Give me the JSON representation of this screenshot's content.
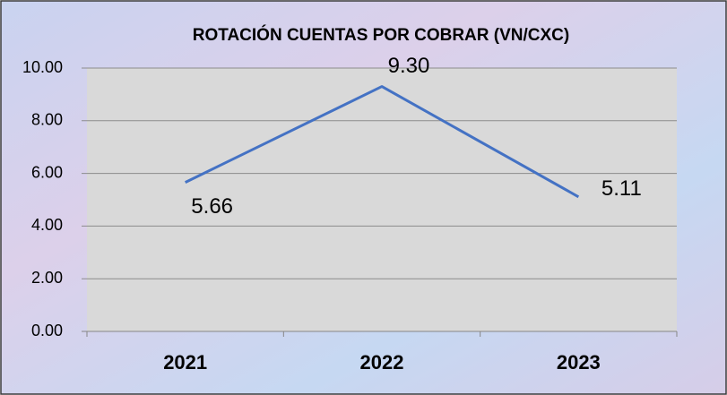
{
  "chart_data": {
    "type": "line",
    "title": "ROTACIÓN CUENTAS POR COBRAR (VN/CXC)",
    "categories": [
      "2021",
      "2022",
      "2023"
    ],
    "values": [
      5.66,
      9.3,
      5.11
    ],
    "value_labels": [
      "5.66",
      "9.30",
      "5.11"
    ],
    "color": "#4472c4",
    "ylim": [
      0,
      10
    ],
    "yticks": [
      {
        "value": 0,
        "label": "0.00"
      },
      {
        "value": 2,
        "label": "2.00"
      },
      {
        "value": 4,
        "label": "4.00"
      },
      {
        "value": 6,
        "label": "6.00"
      },
      {
        "value": 8,
        "label": "8.00"
      },
      {
        "value": 10,
        "label": "10.00"
      }
    ],
    "grid": true
  }
}
